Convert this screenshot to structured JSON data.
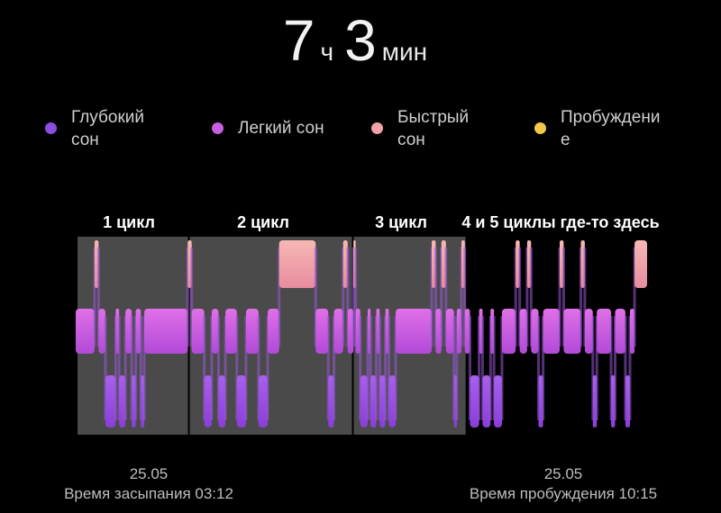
{
  "header": {
    "hours": "7",
    "hours_unit": "ч",
    "minutes": "3",
    "minutes_unit": "мин"
  },
  "legend": [
    {
      "label": "Глубокий\nсон",
      "color": "#8e4ce0",
      "icon": "dot-icon"
    },
    {
      "label": "Легкий сон",
      "color": "#c660e0",
      "icon": "dot-icon"
    },
    {
      "label": "Быстрый\nсон",
      "color": "#f0a2a8",
      "icon": "dot-icon"
    },
    {
      "label": "Пробуждени\nе",
      "color": "#f2c84a",
      "icon": "dot-icon"
    }
  ],
  "footer": {
    "sleep_date": "25.05",
    "sleep_label": "Время засыпания 03:12",
    "wake_date": "25.05",
    "wake_label": "Время пробуждения 10:15"
  },
  "chart_data": {
    "type": "hypnogram",
    "x_range": [
      "03:12",
      "10:15"
    ],
    "stages": [
      "Глубокий сон",
      "Легкий сон",
      "Быстрый сон",
      "Пробуждение"
    ],
    "stage_colors": {
      "deep": "#9a55e8",
      "light": "#d060e0",
      "rem": "#f0a2a8",
      "awake": "#f2c84a"
    },
    "annotations": [
      {
        "label": "1 цикл",
        "from": 0.0,
        "to": 0.198
      },
      {
        "label": "2 цикл",
        "from": 0.198,
        "to": 0.485
      },
      {
        "label": "3 цикл",
        "from": 0.485,
        "to": 0.684
      },
      {
        "label": "4 и 5 циклы где-то здесь",
        "from": 0.684,
        "to": 1.0
      }
    ],
    "segments": [
      {
        "stage": "light",
        "t0": 0.0,
        "t1": 0.033
      },
      {
        "stage": "rem",
        "t0": 0.033,
        "t1": 0.04
      },
      {
        "stage": "light",
        "t0": 0.04,
        "t1": 0.052
      },
      {
        "stage": "deep",
        "t0": 0.052,
        "t1": 0.07
      },
      {
        "stage": "light",
        "t0": 0.07,
        "t1": 0.076
      },
      {
        "stage": "deep",
        "t0": 0.076,
        "t1": 0.087
      },
      {
        "stage": "light",
        "t0": 0.087,
        "t1": 0.098
      },
      {
        "stage": "deep",
        "t0": 0.098,
        "t1": 0.105
      },
      {
        "stage": "light",
        "t0": 0.105,
        "t1": 0.114
      },
      {
        "stage": "deep",
        "t0": 0.114,
        "t1": 0.12
      },
      {
        "stage": "light",
        "t0": 0.12,
        "t1": 0.196
      },
      {
        "stage": "rem",
        "t0": 0.196,
        "t1": 0.203
      },
      {
        "stage": "light",
        "t0": 0.203,
        "t1": 0.225
      },
      {
        "stage": "deep",
        "t0": 0.225,
        "t1": 0.238
      },
      {
        "stage": "light",
        "t0": 0.238,
        "t1": 0.25
      },
      {
        "stage": "deep",
        "t0": 0.25,
        "t1": 0.262
      },
      {
        "stage": "light",
        "t0": 0.262,
        "t1": 0.282
      },
      {
        "stage": "deep",
        "t0": 0.282,
        "t1": 0.298
      },
      {
        "stage": "light",
        "t0": 0.298,
        "t1": 0.32
      },
      {
        "stage": "deep",
        "t0": 0.32,
        "t1": 0.336
      },
      {
        "stage": "light",
        "t0": 0.336,
        "t1": 0.356
      },
      {
        "stage": "rem",
        "t0": 0.356,
        "t1": 0.42
      },
      {
        "stage": "light",
        "t0": 0.42,
        "t1": 0.442
      },
      {
        "stage": "deep",
        "t0": 0.442,
        "t1": 0.452
      },
      {
        "stage": "light",
        "t0": 0.452,
        "t1": 0.468
      },
      {
        "stage": "rem",
        "t0": 0.468,
        "t1": 0.476
      },
      {
        "stage": "light",
        "t0": 0.476,
        "t1": 0.486
      },
      {
        "stage": "rem",
        "t0": 0.486,
        "t1": 0.49
      },
      {
        "stage": "light",
        "t0": 0.49,
        "t1": 0.498
      },
      {
        "stage": "deep",
        "t0": 0.498,
        "t1": 0.511
      },
      {
        "stage": "light",
        "t0": 0.511,
        "t1": 0.516
      },
      {
        "stage": "deep",
        "t0": 0.516,
        "t1": 0.526
      },
      {
        "stage": "light",
        "t0": 0.526,
        "t1": 0.532
      },
      {
        "stage": "deep",
        "t0": 0.532,
        "t1": 0.542
      },
      {
        "stage": "light",
        "t0": 0.542,
        "t1": 0.548
      },
      {
        "stage": "deep",
        "t0": 0.548,
        "t1": 0.56
      },
      {
        "stage": "light",
        "t0": 0.56,
        "t1": 0.623
      },
      {
        "stage": "rem",
        "t0": 0.623,
        "t1": 0.63
      },
      {
        "stage": "light",
        "t0": 0.63,
        "t1": 0.64
      },
      {
        "stage": "rem",
        "t0": 0.64,
        "t1": 0.648
      },
      {
        "stage": "light",
        "t0": 0.648,
        "t1": 0.662
      },
      {
        "stage": "deep",
        "t0": 0.662,
        "t1": 0.667
      },
      {
        "stage": "light",
        "t0": 0.667,
        "t1": 0.675
      },
      {
        "stage": "rem",
        "t0": 0.675,
        "t1": 0.681
      },
      {
        "stage": "light",
        "t0": 0.681,
        "t1": 0.69
      },
      {
        "stage": "deep",
        "t0": 0.69,
        "t1": 0.706
      },
      {
        "stage": "light",
        "t0": 0.706,
        "t1": 0.712
      },
      {
        "stage": "deep",
        "t0": 0.712,
        "t1": 0.726
      },
      {
        "stage": "light",
        "t0": 0.726,
        "t1": 0.732
      },
      {
        "stage": "deep",
        "t0": 0.732,
        "t1": 0.746
      },
      {
        "stage": "light",
        "t0": 0.746,
        "t1": 0.77
      },
      {
        "stage": "rem",
        "t0": 0.77,
        "t1": 0.777
      },
      {
        "stage": "light",
        "t0": 0.777,
        "t1": 0.79
      },
      {
        "stage": "rem",
        "t0": 0.79,
        "t1": 0.797
      },
      {
        "stage": "light",
        "t0": 0.797,
        "t1": 0.81
      },
      {
        "stage": "deep",
        "t0": 0.81,
        "t1": 0.818
      },
      {
        "stage": "light",
        "t0": 0.818,
        "t1": 0.847
      },
      {
        "stage": "rem",
        "t0": 0.847,
        "t1": 0.854
      },
      {
        "stage": "light",
        "t0": 0.854,
        "t1": 0.884
      },
      {
        "stage": "rem",
        "t0": 0.884,
        "t1": 0.891
      },
      {
        "stage": "light",
        "t0": 0.891,
        "t1": 0.905
      },
      {
        "stage": "deep",
        "t0": 0.905,
        "t1": 0.912
      },
      {
        "stage": "light",
        "t0": 0.912,
        "t1": 0.937
      },
      {
        "stage": "deep",
        "t0": 0.937,
        "t1": 0.944
      },
      {
        "stage": "light",
        "t0": 0.944,
        "t1": 0.962
      },
      {
        "stage": "deep",
        "t0": 0.962,
        "t1": 0.97
      },
      {
        "stage": "light",
        "t0": 0.97,
        "t1": 0.978
      },
      {
        "stage": "rem",
        "t0": 0.978,
        "t1": 1.0
      }
    ]
  }
}
